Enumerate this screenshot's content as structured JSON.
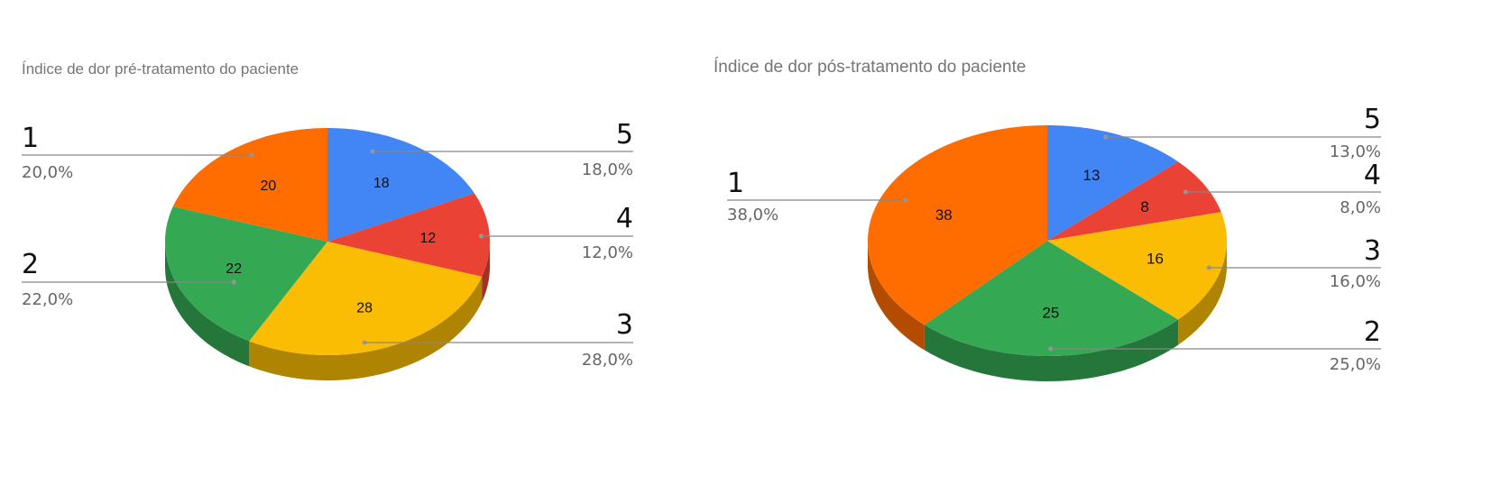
{
  "colors": {
    "1": "#ff6d01",
    "2": "#34a853",
    "3": "#fbbc04",
    "4": "#ea4335",
    "5": "#4285f4"
  },
  "chart_data": [
    {
      "type": "pie",
      "title": "Índice de dor pré-tratamento do paciente",
      "slices": [
        {
          "label": "5",
          "value": 18,
          "percent": "18,0%"
        },
        {
          "label": "4",
          "value": 12,
          "percent": "12,0%"
        },
        {
          "label": "3",
          "value": 28,
          "percent": "28,0%"
        },
        {
          "label": "2",
          "value": 22,
          "percent": "22,0%"
        },
        {
          "label": "1",
          "value": 20,
          "percent": "20,0%"
        }
      ]
    },
    {
      "type": "pie",
      "title": "Índice de dor pós-tratamento do paciente",
      "slices": [
        {
          "label": "5",
          "value": 13,
          "percent": "13,0%"
        },
        {
          "label": "4",
          "value": 8,
          "percent": "8,0%"
        },
        {
          "label": "3",
          "value": 16,
          "percent": "16,0%"
        },
        {
          "label": "2",
          "value": 25,
          "percent": "25,0%"
        },
        {
          "label": "1",
          "value": 38,
          "percent": "38,0%"
        }
      ]
    }
  ]
}
